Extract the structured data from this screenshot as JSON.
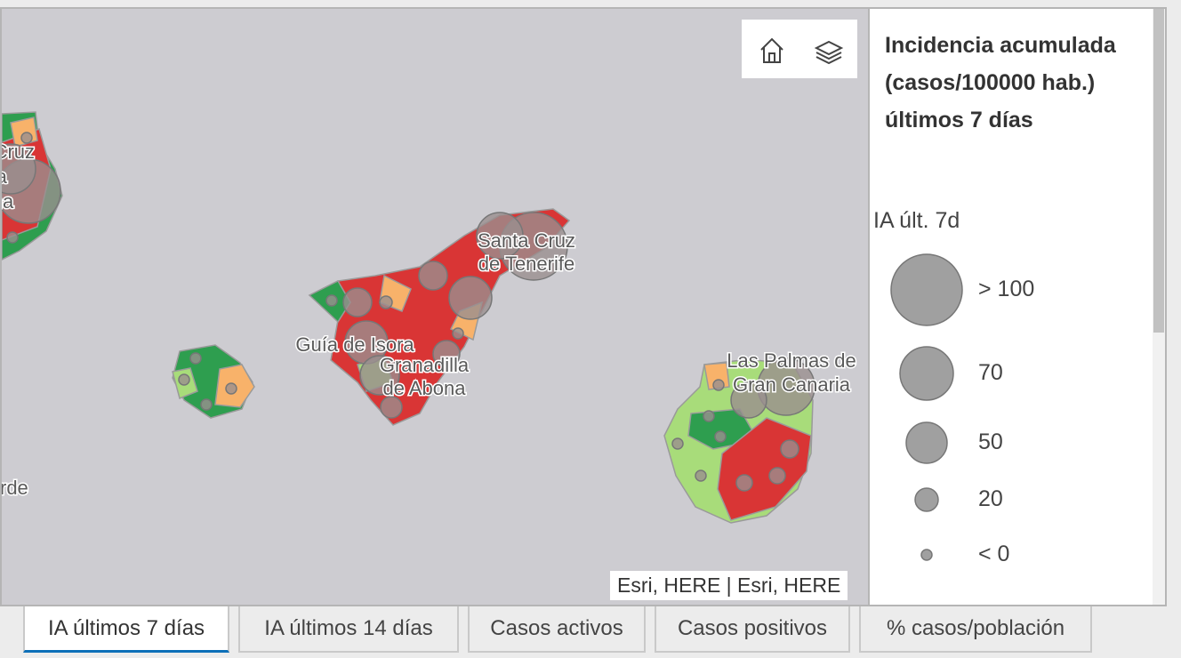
{
  "map": {
    "labels": [
      {
        "lines": [
          "Santa Cruz",
          "de la",
          "Palma"
        ]
      },
      {
        "lines": [
          "Santa Cruz",
          "de Tenerife"
        ]
      },
      {
        "lines": [
          "Guía de Isora"
        ]
      },
      {
        "lines": [
          "Granadilla",
          "de Abona"
        ]
      },
      {
        "lines": [
          "Las Palmas de",
          "Gran Canaria"
        ]
      },
      {
        "lines": [
          "rde"
        ]
      }
    ],
    "attribution": "Esri, HERE | Esri, HERE"
  },
  "legend": {
    "title": "Incidencia acumulada (casos/100000 hab.) últimos 7 días",
    "subtitle": "IA últ. 7d",
    "items": [
      "> 100",
      "70",
      "50",
      "20",
      "< 0"
    ]
  },
  "tabs": [
    "IA últimos 7 días",
    "IA últimos 14 días",
    "Casos activos",
    "Casos positivos",
    "% casos/población"
  ]
}
